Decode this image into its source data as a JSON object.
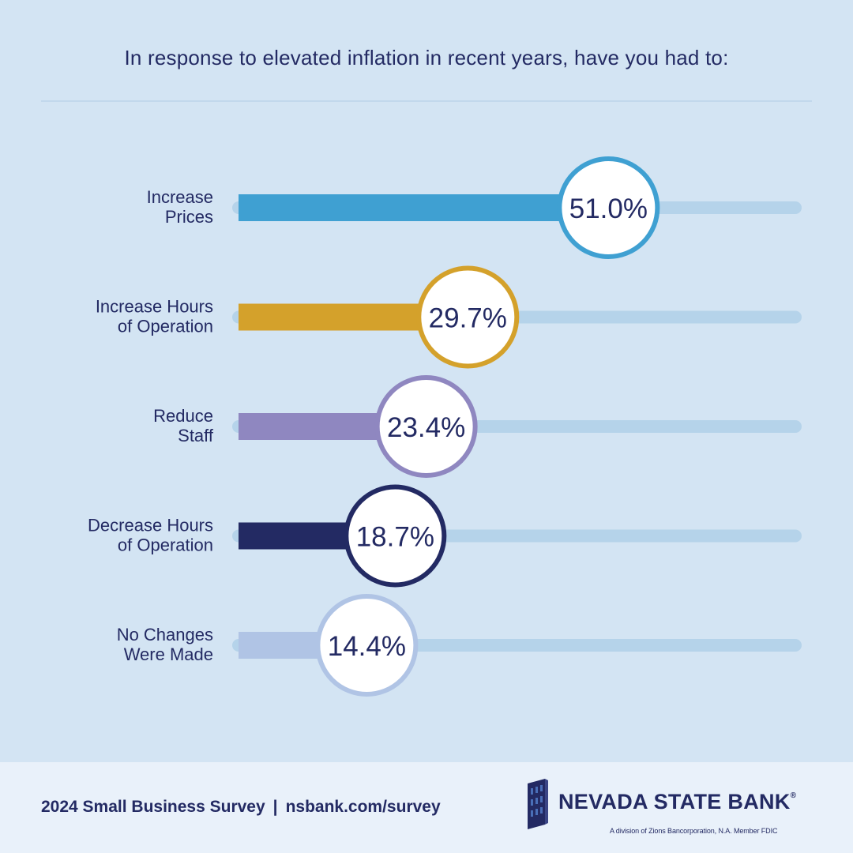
{
  "title": "In response to elevated inflation in recent years, have you had to:",
  "chart_data": {
    "type": "bar",
    "orientation": "horizontal",
    "categories": [
      [
        "Increase",
        "Prices"
      ],
      [
        "Increase Hours",
        "of Operation"
      ],
      [
        "Reduce",
        "Staff"
      ],
      [
        "Decrease Hours",
        "of Operation"
      ],
      [
        "No Changes",
        "Were Made"
      ]
    ],
    "values": [
      51.0,
      29.7,
      23.4,
      18.7,
      14.4
    ],
    "labels": [
      "51.0%",
      "29.7%",
      "23.4%",
      "18.7%",
      "14.4%"
    ],
    "colors": [
      "#3fa0d2",
      "#d4a12b",
      "#8f87c0",
      "#232a63",
      "#b0c4e5"
    ],
    "track_color": "#b5d3ea",
    "xlim": [
      0,
      100
    ],
    "unit": "%",
    "grid": false,
    "legend": "none"
  },
  "footer": {
    "survey": "2024 Small Business Survey",
    "separator": "|",
    "url": "nsbank.com/survey",
    "bank_name": "NEVADA STATE BANK",
    "registered": "®",
    "bank_sub": "A division of Zions Bancorporation, N.A. Member FDIC"
  }
}
